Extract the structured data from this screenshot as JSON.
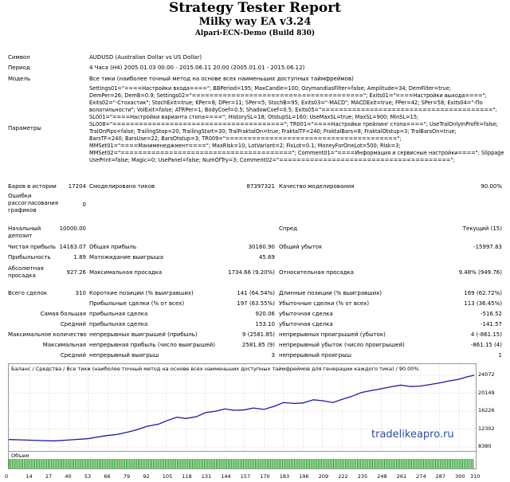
{
  "title": "Strategy Tester Report",
  "ea": "Milky way EA v3.24",
  "server": "Alpari-ECN-Demo (Build 830)",
  "symbol_label": "Символ",
  "symbol": "AUDUSD (Australian Dollar vs US Dollar)",
  "period_label": "Период",
  "period": "4 Часа (H4) 2005.01.03 00:00 - 2015.06.11 20:00 (2005.01.01 - 2015.06.12)",
  "model_label": "Модель",
  "model": "Все тики (наиболее точный метод на основе всех наименьших доступных таймфреймов)",
  "params_label": "Параметры",
  "params": [
    "Settings01=\"====Настройки входа====\"; BBPeriod=195; MaxCandle=100; OzymandiasFilter=false; Amplitude=34; DemFilter=true;",
    "DemPer=26; DemB=0.9; Settings02=\"=======================================\"; Exits01=\"====Настройки выхода====\";",
    "Exits02=\"-Стохастик\"; StochExit=true; KPer=8; DPer=11; SPer=5; StochB=95; Exits03=\"-MACD\"; MACDExit=true; FPer=42; SPer=58; Exits04=\"-По",
    "волатильности\"; VolExit=false; ATRPer=1; BodyCoef=0.5; ShadowCoef=0.5; Exits05=\"=======================================\";",
    "SL001=\"====Настройки варианта стопа====\"; HistorySL=18; OtstupSL=160; UseMaxSL=true; MaxSL=900; MinSL=15;",
    "SL008=\"=======================================\"; TR001=\"====Настройки трейлинг стопа====\"; UseTralOnlyInProfit=false;",
    "TralOnPips=false; TrailingStop=20; TrailingStart=30; TralFraktalOn=true; FraktalTF=240; FraktalBars=8; FraktalOtstup=3; TralBarsOn=true;",
    "BarsTF=240; BarsUse=22; BarsOtstup=3; TR009=\"=======================================\";",
    "MMSet01=\"====Манименеджмент====\"; MaxRisk=10; LotVariant=2; FixLot=0.1; MoneyForOneLot=500; Risk=3;",
    "MMSet02=\"=======================================\"; Comment01=\"====Информация и сервисные настройки====\"; Slippage=1;",
    "UsePrint=false; Magic=0; UsePanel=false; NumOfTry=3; Comment02=\"=======================================\";"
  ],
  "stats": {
    "bars_label": "Баров в истории",
    "bars": "17204",
    "ticks_label": "Смоделировано тиков",
    "ticks": "87397321",
    "quality_label": "Качество моделирования",
    "quality": "90.00%",
    "errors_label": "Ошибки рассогласования графиков",
    "errors": "0",
    "deposit_label": "Начальный депозит",
    "deposit": "10000.00",
    "spread_label": "Спред",
    "spread": "Текущий (15)",
    "net_label": "Чистая прибыль",
    "net": "14163.07",
    "gross_profit_label": "Общая прибыль",
    "gross_profit": "30160.90",
    "gross_loss_label": "Общий убыток",
    "gross_loss": "-15997.83",
    "pf_label": "Прибыльность",
    "pf": "1.89",
    "exp_label": "Матожидание выигрыша",
    "exp": "45.69",
    "abs_dd_label": "Абсолютная просадка",
    "abs_dd": "927.26",
    "max_dd_label": "Максимальная просадка",
    "max_dd": "1734.66 (9.20%)",
    "rel_dd_label": "Относительная просадка",
    "rel_dd": "9.48% (949.76)",
    "total_label": "Всего сделок",
    "total": "310",
    "short_label": "Короткие позиции (% выигравших)",
    "short": "141 (64.54%)",
    "long_label": "Длинные позиции (% выигравших)",
    "long": "169 (62.72%)",
    "win_label": "Прибыльные сделки (% от всех)",
    "win": "197 (63.55%)",
    "loss_label": "Убыточные сделки (% от всех)",
    "loss": "113 (36.45%)",
    "largest_label": "Самая большая",
    "largest_win_label": "прибыльная сделка",
    "largest_win": "920.06",
    "largest_loss_label": "убыточная сделка",
    "largest_loss": "-516.52",
    "avg_label": "Средний",
    "avg_win_label": "прибыльная сделка",
    "avg_win": "153.10",
    "avg_loss_label": "убыточная сделка",
    "avg_loss": "-141.57",
    "maxn_label": "Максимальное количество",
    "maxn_win_label": "непрерывных выигрышей (прибыль)",
    "maxn_win": "9 (2581.85)",
    "maxn_loss_label": "непрерывных проигрышей (убыток)",
    "maxn_loss": "4 (-861.15)",
    "maxc_label": "Максимальная",
    "maxc_win_label": "непрерывная прибыль (число выигрышей)",
    "maxc_win": "2581.85 (9)",
    "maxc_loss_label": "непрерывный убыток (число проигрышей)",
    "maxc_loss": "-861.15 (4)",
    "avgc_label": "Средний",
    "avgc_win_label": "непрерывный выигрыш",
    "avgc_win": "3",
    "avgc_loss_label": "непрерывный проигрыш",
    "avgc_loss": "1"
  },
  "chart_legend": "Баланс / Средства / Все тики (наиболее точный метод на основе всех наименьших доступных таймфреймов для генерации каждого тика) / 90.00%",
  "volume_label": "Объем",
  "watermark": "tradelikeapro.ru",
  "chart_data": {
    "type": "line",
    "yticks": [
      "24072",
      "20149",
      "16226",
      "12302",
      "8380"
    ],
    "ylim": [
      8380,
      24072
    ],
    "xticks": [
      "0",
      "14",
      "27",
      "40",
      "53",
      "66",
      "79",
      "92",
      "105",
      "118",
      "131",
      "144",
      "157",
      "170",
      "183",
      "196",
      "209",
      "222",
      "235",
      "248",
      "261",
      "274",
      "287",
      "300",
      "310"
    ],
    "series": [
      {
        "name": "Баланс",
        "color": "#1a1aa0",
        "x": [
          0,
          10,
          20,
          30,
          40,
          53,
          60,
          66,
          72,
          79,
          85,
          92,
          100,
          105,
          112,
          118,
          125,
          131,
          138,
          144,
          150,
          157,
          163,
          170,
          177,
          183,
          190,
          196,
          203,
          209,
          216,
          222,
          228,
          235,
          241,
          248,
          254,
          261,
          268,
          274,
          280,
          287,
          293,
          300,
          305,
          310
        ],
        "y": [
          10000,
          9900,
          9800,
          9700,
          9900,
          10200,
          10600,
          10900,
          11100,
          11600,
          12100,
          12900,
          13400,
          14100,
          14900,
          14600,
          15000,
          15900,
          16200,
          16700,
          16400,
          16500,
          16900,
          16600,
          17300,
          18100,
          17900,
          18000,
          18700,
          18500,
          18100,
          18800,
          19400,
          20300,
          20700,
          21100,
          21500,
          21900,
          21600,
          21700,
          22000,
          22400,
          22800,
          23200,
          23700,
          24072
        ]
      }
    ],
    "volume": "0.1 lot per trade, uniform bars"
  }
}
